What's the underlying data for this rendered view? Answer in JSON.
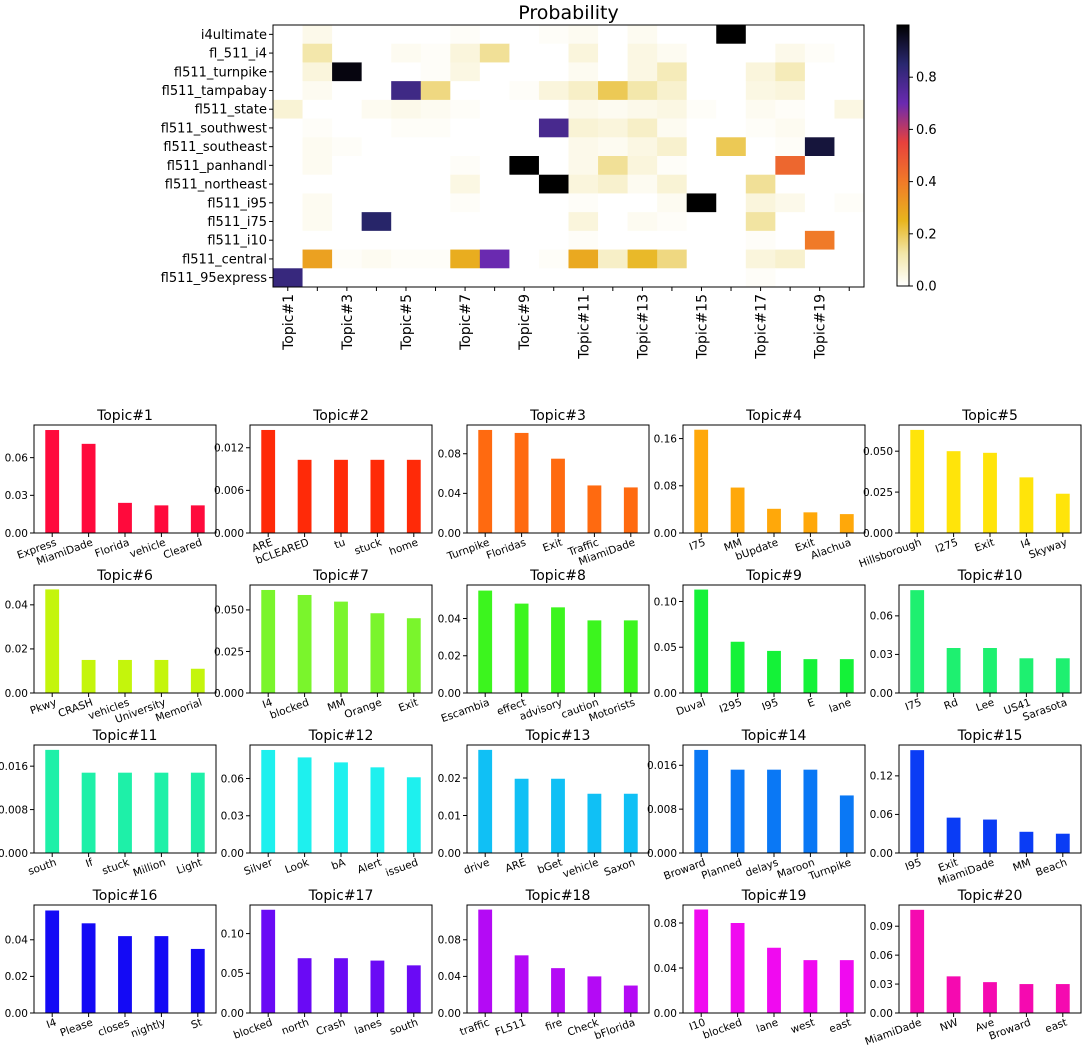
{
  "chart_data": [
    {
      "type": "heatmap",
      "title": "Probability",
      "rows": [
        "i4ultimate",
        "fl_511_i4",
        "fl511_turnpike",
        "fl511_tampabay",
        "fl511_state",
        "fl511_southwest",
        "fl511_southeast",
        "fl511_panhandl",
        "fl511_northeast",
        "fl511_i95",
        "fl511_i75",
        "fl511_i10",
        "fl511_central",
        "fl511_95express"
      ],
      "columns": [
        "Topic#1",
        "Topic#2",
        "Topic#3",
        "Topic#4",
        "Topic#5",
        "Topic#6",
        "Topic#7",
        "Topic#8",
        "Topic#9",
        "Topic#10",
        "Topic#11",
        "Topic#12",
        "Topic#13",
        "Topic#14",
        "Topic#15",
        "Topic#16",
        "Topic#17",
        "Topic#18",
        "Topic#19",
        "Topic#20"
      ],
      "column_tick_labels": [
        "Topic#1",
        "Topic#3",
        "Topic#5",
        "Topic#7",
        "Topic#9",
        "Topic#11",
        "Topic#13",
        "Topic#15",
        "Topic#17",
        "Topic#19"
      ],
      "colorbar": {
        "colormap": "CMRmap_r",
        "range": [
          0,
          1.0
        ],
        "ticks": [
          "0.0",
          "0.2",
          "0.4",
          "0.6",
          "0.8"
        ]
      },
      "values": [
        [
          0,
          0.03,
          0,
          0,
          0,
          0,
          0.01,
          0,
          0,
          0.01,
          0.02,
          0,
          0.02,
          0,
          0,
          1.0,
          0,
          0,
          0,
          0
        ],
        [
          0,
          0.12,
          0,
          0,
          0.02,
          0.01,
          0.05,
          0.14,
          0,
          0,
          0.05,
          0,
          0.04,
          0.02,
          0,
          0,
          0,
          0.03,
          0.01,
          0
        ],
        [
          0,
          0.05,
          0.98,
          0,
          0,
          0.01,
          0.04,
          0,
          0,
          0,
          0.02,
          0,
          0.04,
          0.1,
          0,
          0,
          0.05,
          0.1,
          0,
          0
        ],
        [
          0,
          0.02,
          0,
          0,
          0.8,
          0.16,
          0,
          0,
          0.01,
          0.05,
          0.08,
          0.2,
          0.12,
          0.07,
          0,
          0,
          0.04,
          0.05,
          0,
          0
        ],
        [
          0.06,
          0,
          0,
          0.02,
          0.03,
          0.02,
          0.01,
          0,
          0,
          0,
          0.03,
          0.02,
          0.03,
          0.04,
          0.01,
          0,
          0.02,
          0.01,
          0,
          0.04
        ],
        [
          0,
          0.01,
          0,
          0,
          0.01,
          0.01,
          0,
          0,
          0,
          0.78,
          0.06,
          0.05,
          0.08,
          0.02,
          0,
          0,
          0.01,
          0.02,
          0,
          0
        ],
        [
          0,
          0.02,
          0.01,
          0,
          0,
          0,
          0,
          0,
          0,
          0,
          0.03,
          0.02,
          0.04,
          0.07,
          0,
          0.2,
          0,
          0.01,
          0.92,
          0
        ],
        [
          0,
          0.02,
          0,
          0,
          0,
          0,
          0.01,
          0,
          1.0,
          0,
          0.03,
          0.14,
          0.05,
          0.01,
          0,
          0,
          0,
          0.45,
          0,
          0
        ],
        [
          0,
          0,
          0,
          0,
          0,
          0,
          0.04,
          0,
          0,
          1.0,
          0.05,
          0.07,
          0.02,
          0.06,
          0,
          0,
          0.14,
          0,
          0,
          0
        ],
        [
          0,
          0.02,
          0,
          0,
          0,
          0,
          0.01,
          0,
          0,
          0,
          0.01,
          0,
          0,
          0.02,
          1.0,
          0,
          0.05,
          0.03,
          0,
          0.01
        ],
        [
          0,
          0.02,
          0,
          0.86,
          0,
          0,
          0,
          0,
          0,
          0,
          0.05,
          0,
          0.02,
          0.01,
          0,
          0,
          0.13,
          0,
          0,
          0
        ],
        [
          0,
          0,
          0,
          0,
          0,
          0,
          0,
          0,
          0,
          0,
          0.01,
          0,
          0,
          0,
          0,
          0,
          0.01,
          0,
          0.4,
          0
        ],
        [
          0,
          0.3,
          0.01,
          0.02,
          0.01,
          0.01,
          0.27,
          0.7,
          0,
          0.01,
          0.28,
          0.08,
          0.24,
          0.16,
          0,
          0,
          0.05,
          0.07,
          0,
          0
        ],
        [
          0.82,
          0,
          0,
          0,
          0,
          0,
          0,
          0,
          0,
          0,
          0,
          0,
          0,
          0,
          0,
          0,
          0.01,
          0,
          0,
          0
        ]
      ]
    },
    {
      "type": "bar",
      "title": "Topic#1",
      "color": "#ff0a3c",
      "categories": [
        "Express",
        "MiamiDade",
        "Florida",
        "vehicle",
        "Cleared"
      ],
      "values": [
        0.082,
        0.071,
        0.024,
        0.022,
        0.022
      ],
      "ylim": [
        0,
        0.086
      ],
      "yticks": [
        0.0,
        0.03,
        0.06
      ],
      "ytick_labels": [
        "0.00",
        "0.03",
        "0.06"
      ]
    },
    {
      "type": "bar",
      "title": "Topic#2",
      "color": "#ff2a08",
      "categories": [
        "ARE",
        "bCLEARED",
        "tu",
        "stuck",
        "home"
      ],
      "values": [
        0.0145,
        0.0103,
        0.0103,
        0.0103,
        0.0103
      ],
      "ylim": [
        0,
        0.0152
      ],
      "yticks": [
        0.0,
        0.006,
        0.012
      ],
      "ytick_labels": [
        "0.000",
        "0.006",
        "0.012"
      ]
    },
    {
      "type": "bar",
      "title": "Topic#3",
      "color": "#ff6a10",
      "categories": [
        "Turnpike",
        "Floridas",
        "Exit",
        "Traffic",
        "MiamiDade"
      ],
      "values": [
        0.104,
        0.101,
        0.075,
        0.048,
        0.046
      ],
      "ylim": [
        0,
        0.109
      ],
      "yticks": [
        0.0,
        0.04,
        0.08
      ],
      "ytick_labels": [
        "0.00",
        "0.04",
        "0.08"
      ]
    },
    {
      "type": "bar",
      "title": "Topic#4",
      "color": "#ffa80a",
      "categories": [
        "I75",
        "MM",
        "bUpdate",
        "Exit",
        "Alachua"
      ],
      "values": [
        0.175,
        0.077,
        0.041,
        0.035,
        0.032
      ],
      "ylim": [
        0,
        0.183
      ],
      "yticks": [
        0.0,
        0.08,
        0.16
      ],
      "ytick_labels": [
        "0.00",
        "0.08",
        "0.16"
      ]
    },
    {
      "type": "bar",
      "title": "Topic#5",
      "color": "#ffe40a",
      "categories": [
        "Hillsborough",
        "I275",
        "Exit",
        "I4",
        "Skyway"
      ],
      "values": [
        0.063,
        0.05,
        0.049,
        0.034,
        0.024
      ],
      "ylim": [
        0,
        0.066
      ],
      "yticks": [
        0.0,
        0.025,
        0.05
      ],
      "ytick_labels": [
        "0.000",
        "0.025",
        "0.050"
      ]
    },
    {
      "type": "bar",
      "title": "Topic#6",
      "color": "#c4f50c",
      "categories": [
        "Pkwy",
        "CRASH",
        "vehicles",
        "University",
        "Memorial"
      ],
      "values": [
        0.047,
        0.015,
        0.015,
        0.015,
        0.011
      ],
      "ylim": [
        0,
        0.049
      ],
      "yticks": [
        0.0,
        0.02,
        0.04
      ],
      "ytick_labels": [
        "0.00",
        "0.02",
        "0.04"
      ]
    },
    {
      "type": "bar",
      "title": "Topic#7",
      "color": "#7af52c",
      "categories": [
        "I4",
        "blocked",
        "MM",
        "Orange",
        "Exit"
      ],
      "values": [
        0.062,
        0.059,
        0.055,
        0.048,
        0.045
      ],
      "ylim": [
        0,
        0.065
      ],
      "yticks": [
        0.0,
        0.025,
        0.05
      ],
      "ytick_labels": [
        "0.000",
        "0.025",
        "0.050"
      ]
    },
    {
      "type": "bar",
      "title": "Topic#8",
      "color": "#3cf51e",
      "categories": [
        "Escambia",
        "effect",
        "advisory",
        "caution",
        "Motorists"
      ],
      "values": [
        0.055,
        0.048,
        0.046,
        0.039,
        0.039
      ],
      "ylim": [
        0,
        0.058
      ],
      "yticks": [
        0.0,
        0.02,
        0.04
      ],
      "ytick_labels": [
        "0.00",
        "0.02",
        "0.04"
      ]
    },
    {
      "type": "bar",
      "title": "Topic#9",
      "color": "#14f238",
      "categories": [
        "Duval",
        "I295",
        "I95",
        "E",
        "lane"
      ],
      "values": [
        0.113,
        0.056,
        0.046,
        0.037,
        0.037
      ],
      "ylim": [
        0,
        0.118
      ],
      "yticks": [
        0.0,
        0.05,
        0.1
      ],
      "ytick_labels": [
        "0.00",
        "0.05",
        "0.10"
      ]
    },
    {
      "type": "bar",
      "title": "Topic#10",
      "color": "#1ef070",
      "categories": [
        "I75",
        "Rd",
        "Lee",
        "US41",
        "Sarasota"
      ],
      "values": [
        0.08,
        0.035,
        0.035,
        0.027,
        0.027
      ],
      "ylim": [
        0,
        0.084
      ],
      "yticks": [
        0.0,
        0.03,
        0.06
      ],
      "ytick_labels": [
        "0.00",
        "0.03",
        "0.06"
      ]
    },
    {
      "type": "bar",
      "title": "Topic#11",
      "color": "#1ef0a8",
      "categories": [
        "south",
        "If",
        "stuck",
        "Million",
        "Light"
      ],
      "values": [
        0.019,
        0.0148,
        0.0148,
        0.0148,
        0.0148
      ],
      "ylim": [
        0,
        0.0199
      ],
      "yticks": [
        0.0,
        0.008,
        0.016
      ],
      "ytick_labels": [
        "0.000",
        "0.008",
        "0.016"
      ]
    },
    {
      "type": "bar",
      "title": "Topic#12",
      "color": "#1ef0ee",
      "categories": [
        "Silver",
        "Look",
        "bA",
        "Alert",
        "issued"
      ],
      "values": [
        0.083,
        0.077,
        0.073,
        0.069,
        0.061
      ],
      "ylim": [
        0,
        0.087
      ],
      "yticks": [
        0.0,
        0.03,
        0.06
      ],
      "ytick_labels": [
        "0.00",
        "0.03",
        "0.06"
      ]
    },
    {
      "type": "bar",
      "title": "Topic#13",
      "color": "#10c0f5",
      "categories": [
        "drive",
        "ARE",
        "bGet",
        "vehicle",
        "Saxon"
      ],
      "values": [
        0.0275,
        0.0198,
        0.0198,
        0.0158,
        0.0158
      ],
      "ylim": [
        0,
        0.0288
      ],
      "yticks": [
        0.0,
        0.01,
        0.02
      ],
      "ytick_labels": [
        "0.00",
        "0.01",
        "0.02"
      ]
    },
    {
      "type": "bar",
      "title": "Topic#14",
      "color": "#0a78f5",
      "categories": [
        "Broward",
        "Planned",
        "delays",
        "Maroon",
        "Turnpike"
      ],
      "values": [
        0.0188,
        0.0152,
        0.0152,
        0.0152,
        0.0105
      ],
      "ylim": [
        0,
        0.0197
      ],
      "yticks": [
        0.0,
        0.008,
        0.016
      ],
      "ytick_labels": [
        "0.000",
        "0.008",
        "0.016"
      ]
    },
    {
      "type": "bar",
      "title": "Topic#15",
      "color": "#0a3cf5",
      "categories": [
        "I95",
        "Exit",
        "MiamiDade",
        "MM",
        "Beach"
      ],
      "values": [
        0.16,
        0.055,
        0.052,
        0.033,
        0.03
      ],
      "ylim": [
        0,
        0.168
      ],
      "yticks": [
        0.0,
        0.06,
        0.12
      ],
      "ytick_labels": [
        "0.00",
        "0.06",
        "0.12"
      ]
    },
    {
      "type": "bar",
      "title": "Topic#16",
      "color": "#140af5",
      "categories": [
        "I4",
        "Please",
        "closes",
        "nightly",
        "St"
      ],
      "values": [
        0.056,
        0.049,
        0.042,
        0.042,
        0.035
      ],
      "ylim": [
        0,
        0.059
      ],
      "yticks": [
        0.0,
        0.02,
        0.04
      ],
      "ytick_labels": [
        "0.00",
        "0.02",
        "0.04"
      ]
    },
    {
      "type": "bar",
      "title": "Topic#17",
      "color": "#6a0af5",
      "categories": [
        "blocked",
        "north",
        "Crash",
        "lanes",
        "south"
      ],
      "values": [
        0.13,
        0.069,
        0.069,
        0.066,
        0.06
      ],
      "ylim": [
        0,
        0.136
      ],
      "yticks": [
        0.0,
        0.05,
        0.1
      ],
      "ytick_labels": [
        "0.00",
        "0.05",
        "0.10"
      ]
    },
    {
      "type": "bar",
      "title": "Topic#18",
      "color": "#b40af5",
      "categories": [
        "traffic",
        "FL511",
        "fire",
        "Check",
        "bFlorida"
      ],
      "values": [
        0.113,
        0.063,
        0.049,
        0.04,
        0.03
      ],
      "ylim": [
        0,
        0.118
      ],
      "yticks": [
        0.0,
        0.04,
        0.08
      ],
      "ytick_labels": [
        "0.00",
        "0.04",
        "0.08"
      ]
    },
    {
      "type": "bar",
      "title": "Topic#19",
      "color": "#f00af0",
      "categories": [
        "I10",
        "blocked",
        "lane",
        "west",
        "east"
      ],
      "values": [
        0.092,
        0.08,
        0.058,
        0.047,
        0.047
      ],
      "ylim": [
        0,
        0.096
      ],
      "yticks": [
        0.0,
        0.04,
        0.08
      ],
      "ytick_labels": [
        "0.00",
        "0.04",
        "0.08"
      ]
    },
    {
      "type": "bar",
      "title": "Topic#20",
      "color": "#f50ab0",
      "categories": [
        "MiamiDade",
        "NW",
        "Ave",
        "Broward",
        "east"
      ],
      "values": [
        0.107,
        0.038,
        0.032,
        0.03,
        0.03
      ],
      "ylim": [
        0,
        0.112
      ],
      "yticks": [
        0.0,
        0.03,
        0.06,
        0.09
      ],
      "ytick_labels": [
        "0.00",
        "0.03",
        "0.06",
        "0.09"
      ]
    }
  ]
}
